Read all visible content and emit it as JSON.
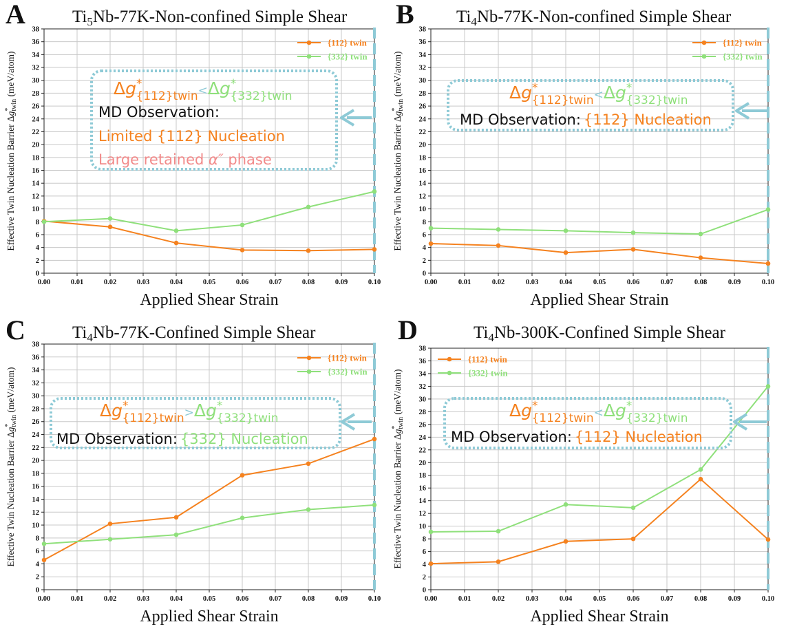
{
  "colors": {
    "twin112": "#f5821f",
    "twin332": "#8fe07b",
    "alpha": "#f28a8a",
    "box": "#8ecad6",
    "grid": "#c8c8c8",
    "text": "#111111"
  },
  "ylabel": {
    "prefix": "Effective Twin Nucleation Barrier Δ",
    "g": "g",
    "sup": "*",
    "sub": "twin",
    "suffix": " (meV/atom)"
  },
  "chart_data": [
    {
      "panel": "A",
      "type": "line",
      "title_parts": [
        {
          "t": "Ti"
        },
        {
          "t": "5",
          "sub": true
        },
        {
          "t": "Nb-77K-Non-confined Simple Shear"
        }
      ],
      "xlabel": "Applied Shear Strain",
      "x": [
        0.0,
        0.02,
        0.04,
        0.06,
        0.08,
        0.1
      ],
      "xticks": [
        "0.00",
        "0.01",
        "0.02",
        "0.03",
        "0.04",
        "0.05",
        "0.06",
        "0.07",
        "0.08",
        "0.09",
        "0.10"
      ],
      "ylim": [
        0,
        38
      ],
      "yticks": [
        "0",
        "2",
        "4",
        "6",
        "8",
        "10",
        "12",
        "14",
        "16",
        "18",
        "20",
        "22",
        "24",
        "26",
        "28",
        "30",
        "32",
        "34",
        "36",
        "38"
      ],
      "series": [
        {
          "name": "{112} twin",
          "color": "#f5821f",
          "values": [
            8.1,
            7.2,
            4.7,
            3.6,
            3.5,
            3.7
          ]
        },
        {
          "name": "{332} twin",
          "color": "#8fe07b",
          "values": [
            8.0,
            8.5,
            6.6,
            7.5,
            10.3,
            12.7
          ]
        }
      ],
      "legend": "top-right",
      "annotation": {
        "comparator": "<",
        "lines": [
          {
            "text": "MD Observation:",
            "color": "#111111"
          },
          {
            "text": "Limited {112} Nucleation",
            "color": "#f5821f"
          }
        ],
        "line3": {
          "prefix": "Large retained ",
          "symbol": "α″",
          "suffix": " phase",
          "color": "#f28a8a"
        }
      }
    },
    {
      "panel": "B",
      "type": "line",
      "title_parts": [
        {
          "t": "Ti"
        },
        {
          "t": "4",
          "sub": true
        },
        {
          "t": "Nb-77K-Non-confined Simple Shear"
        }
      ],
      "xlabel": "Applied Shear Strain",
      "x": [
        0.0,
        0.02,
        0.04,
        0.06,
        0.08,
        0.1
      ],
      "xticks": [
        "0.00",
        "0.01",
        "0.02",
        "0.03",
        "0.04",
        "0.05",
        "0.06",
        "0.07",
        "0.08",
        "0.09",
        "0.10"
      ],
      "ylim": [
        0,
        38
      ],
      "yticks": [
        "0",
        "2",
        "4",
        "6",
        "8",
        "10",
        "12",
        "14",
        "16",
        "18",
        "20",
        "22",
        "24",
        "26",
        "28",
        "30",
        "32",
        "34",
        "36",
        "38"
      ],
      "series": [
        {
          "name": "{112} twin",
          "color": "#f5821f",
          "values": [
            4.6,
            4.3,
            3.2,
            3.7,
            2.4,
            1.5
          ]
        },
        {
          "name": "{332} twin",
          "color": "#8fe07b",
          "values": [
            7.0,
            6.8,
            6.6,
            6.3,
            6.1,
            9.9
          ]
        }
      ],
      "legend": "top-right",
      "annotation": {
        "comparator": "<",
        "lines": [
          {
            "text": "MD Observation:",
            "color": "#111111"
          },
          {
            "text": "{112} Nucleation",
            "color": "#f5821f"
          }
        ]
      }
    },
    {
      "panel": "C",
      "type": "line",
      "title_parts": [
        {
          "t": "Ti"
        },
        {
          "t": "4",
          "sub": true
        },
        {
          "t": "Nb-77K-Confined Simple Shear"
        }
      ],
      "xlabel": "Applied Shear Strain",
      "x": [
        0.0,
        0.02,
        0.04,
        0.06,
        0.08,
        0.1
      ],
      "xticks": [
        "0.00",
        "0.01",
        "0.02",
        "0.03",
        "0.04",
        "0.05",
        "0.06",
        "0.07",
        "0.08",
        "0.09",
        "0.10"
      ],
      "ylim": [
        0,
        38
      ],
      "yticks": [
        "0",
        "2",
        "4",
        "6",
        "8",
        "10",
        "12",
        "14",
        "16",
        "18",
        "20",
        "22",
        "24",
        "26",
        "28",
        "30",
        "32",
        "34",
        "36",
        "38"
      ],
      "series": [
        {
          "name": "{112} twin",
          "color": "#f5821f",
          "values": [
            4.6,
            10.2,
            11.2,
            17.7,
            19.5,
            23.3
          ]
        },
        {
          "name": "{332} twin",
          "color": "#8fe07b",
          "values": [
            7.1,
            7.8,
            8.5,
            11.1,
            12.4,
            13.1
          ]
        }
      ],
      "legend": "top-right",
      "annotation": {
        "comparator": ">",
        "lines": [
          {
            "text": "MD Observation:",
            "color": "#111111"
          },
          {
            "text": "{332} Nucleation",
            "color": "#8fe07b"
          }
        ]
      }
    },
    {
      "panel": "D",
      "type": "line",
      "title_parts": [
        {
          "t": "Ti"
        },
        {
          "t": "4",
          "sub": true
        },
        {
          "t": "Nb-300K-Confined Simple Shear"
        }
      ],
      "xlabel": "Applied Shear Strain",
      "x": [
        0.0,
        0.02,
        0.04,
        0.06,
        0.08,
        0.1
      ],
      "xticks": [
        "0.00",
        "0.01",
        "0.02",
        "0.03",
        "0.04",
        "0.05",
        "0.06",
        "0.07",
        "0.08",
        "0.09",
        "0.10"
      ],
      "ylim": [
        0,
        38
      ],
      "yticks": [
        "0",
        "2",
        "4",
        "6",
        "8",
        "10",
        "12",
        "14",
        "16",
        "18",
        "20",
        "22",
        "24",
        "26",
        "28",
        "30",
        "32",
        "34",
        "36",
        "38"
      ],
      "series": [
        {
          "name": "{112} twin",
          "color": "#f5821f",
          "values": [
            4.1,
            4.4,
            7.6,
            8.0,
            17.4,
            7.9
          ]
        },
        {
          "name": "{332} twin",
          "color": "#8fe07b",
          "values": [
            9.1,
            9.2,
            13.4,
            12.9,
            18.9,
            32.0
          ]
        }
      ],
      "legend": "top-left",
      "annotation": {
        "comparator": "<",
        "lines": [
          {
            "text": "MD Observation:",
            "color": "#111111"
          },
          {
            "text": "{112} Nucleation",
            "color": "#f5821f"
          }
        ]
      }
    }
  ]
}
